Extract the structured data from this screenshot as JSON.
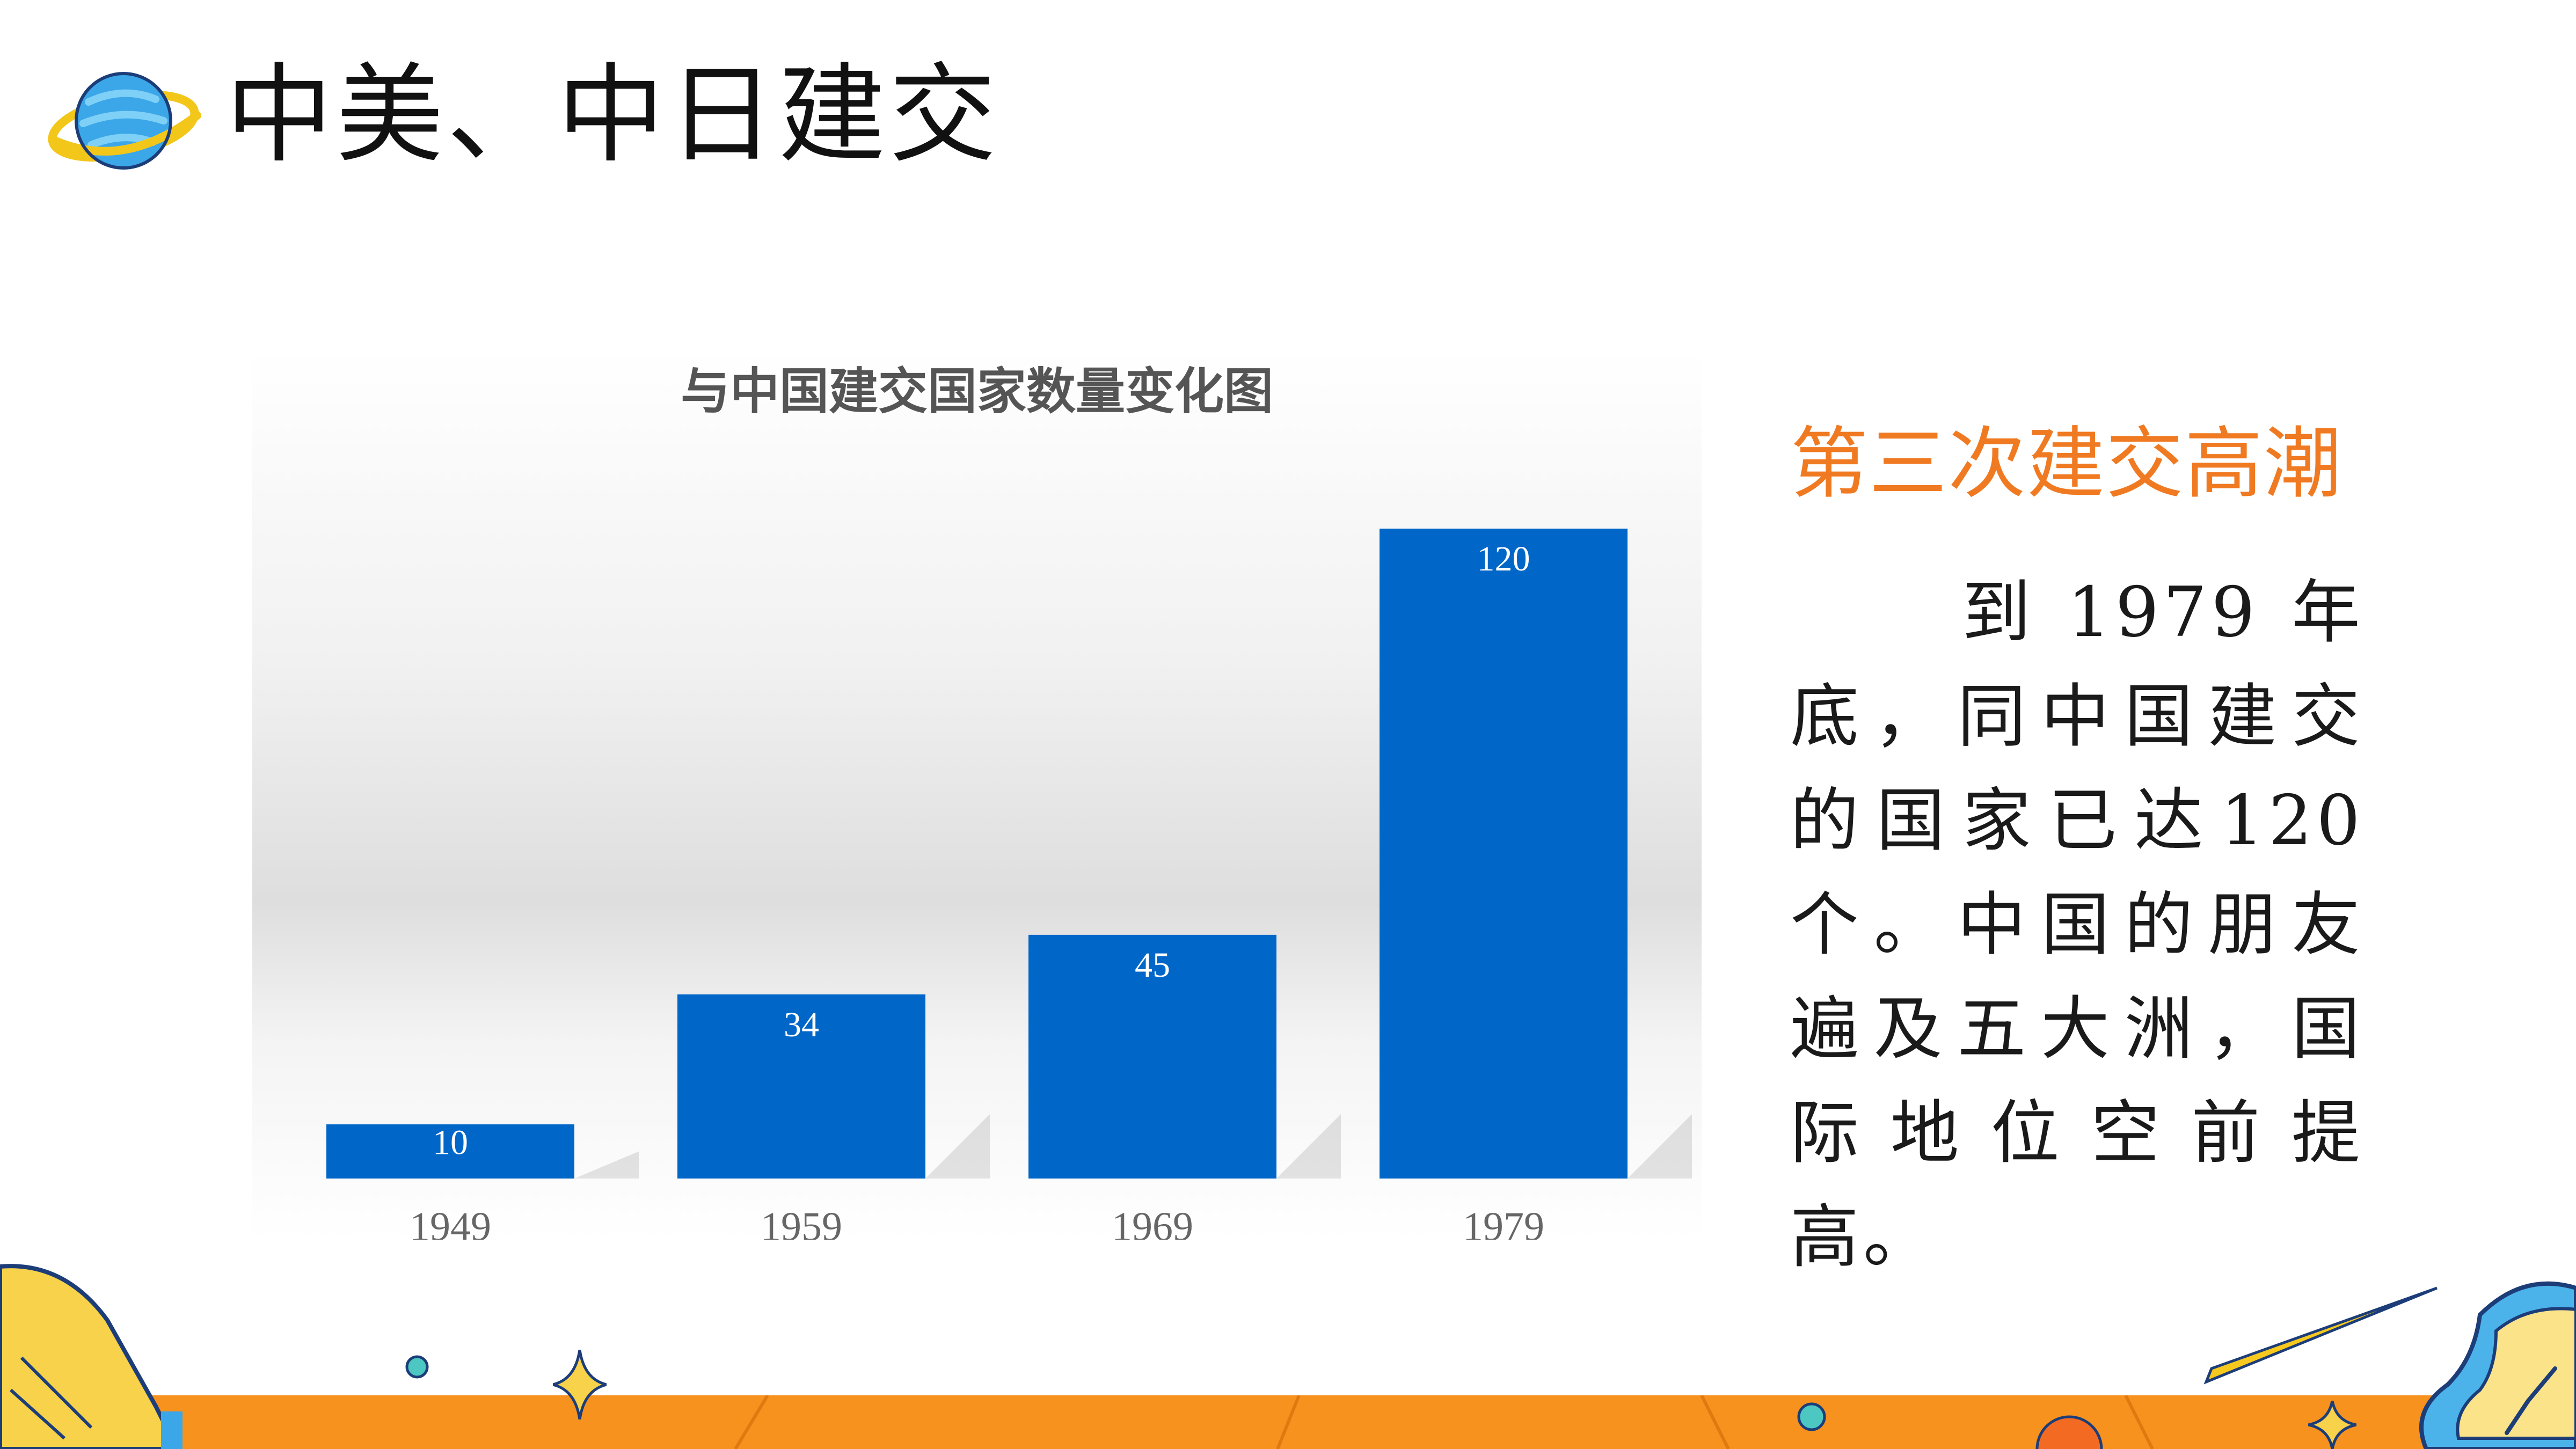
{
  "page": {
    "title": "中美、中日建交",
    "subtitle": "第三次建交高潮",
    "body": "到1979年底，同中国建交的国家已达120个。中国的朋友遍及五大洲，国际地位空前提高。"
  },
  "colors": {
    "accent": "#f07a22",
    "bar": "#0066c7",
    "band": "#f7921e"
  },
  "icons": {
    "title_icon": "planet-icon",
    "decorations": [
      "book-icon",
      "sparkle-star-icon",
      "comet-icon",
      "clock-icon",
      "dot-icon"
    ]
  },
  "chart_data": {
    "type": "bar",
    "title": "与中国建交国家数量变化图",
    "categories": [
      "1949",
      "1959",
      "1969",
      "1979"
    ],
    "values": [
      10,
      34,
      45,
      120
    ],
    "data_labels": [
      "10",
      "34",
      "45",
      "120"
    ],
    "ylim": [
      0,
      120
    ],
    "grid": false,
    "legend": "none"
  }
}
